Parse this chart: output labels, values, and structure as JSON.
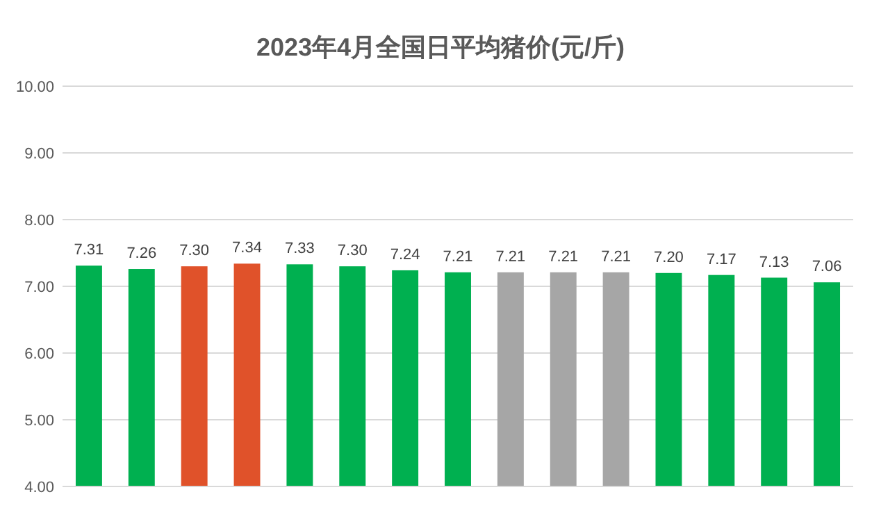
{
  "chart_data": {
    "type": "bar",
    "title": "2023年4月全国日平均猪价(元/斤)",
    "categories": [
      null,
      null,
      null,
      null,
      null,
      null,
      null,
      null,
      null,
      null,
      null,
      null,
      null,
      null,
      null
    ],
    "values": [
      7.31,
      7.26,
      7.3,
      7.34,
      7.33,
      7.3,
      7.24,
      7.21,
      7.21,
      7.21,
      7.21,
      7.2,
      7.17,
      7.13,
      7.06
    ],
    "colors": [
      "#00b050",
      "#00b050",
      "#e0522a",
      "#e0522a",
      "#00b050",
      "#00b050",
      "#00b050",
      "#00b050",
      "#a6a6a6",
      "#a6a6a6",
      "#a6a6a6",
      "#00b050",
      "#00b050",
      "#00b050",
      "#00b050"
    ],
    "value_labels": [
      "7.31",
      "7.26",
      "7.30",
      "7.34",
      "7.33",
      "7.30",
      "7.24",
      "7.21",
      "7.21",
      "7.21",
      "7.21",
      "7.20",
      "7.17",
      "7.13",
      "7.06"
    ],
    "ylim": [
      4,
      10
    ],
    "yticks": [
      {
        "value": 4,
        "label": "4.00"
      },
      {
        "value": 5,
        "label": "5.00"
      },
      {
        "value": 6,
        "label": "6.00"
      },
      {
        "value": 7,
        "label": "7.00"
      },
      {
        "value": 8,
        "label": "8.00"
      },
      {
        "value": 9,
        "label": "9.00"
      },
      {
        "value": 10,
        "label": "10.00"
      }
    ],
    "grid": "y"
  }
}
